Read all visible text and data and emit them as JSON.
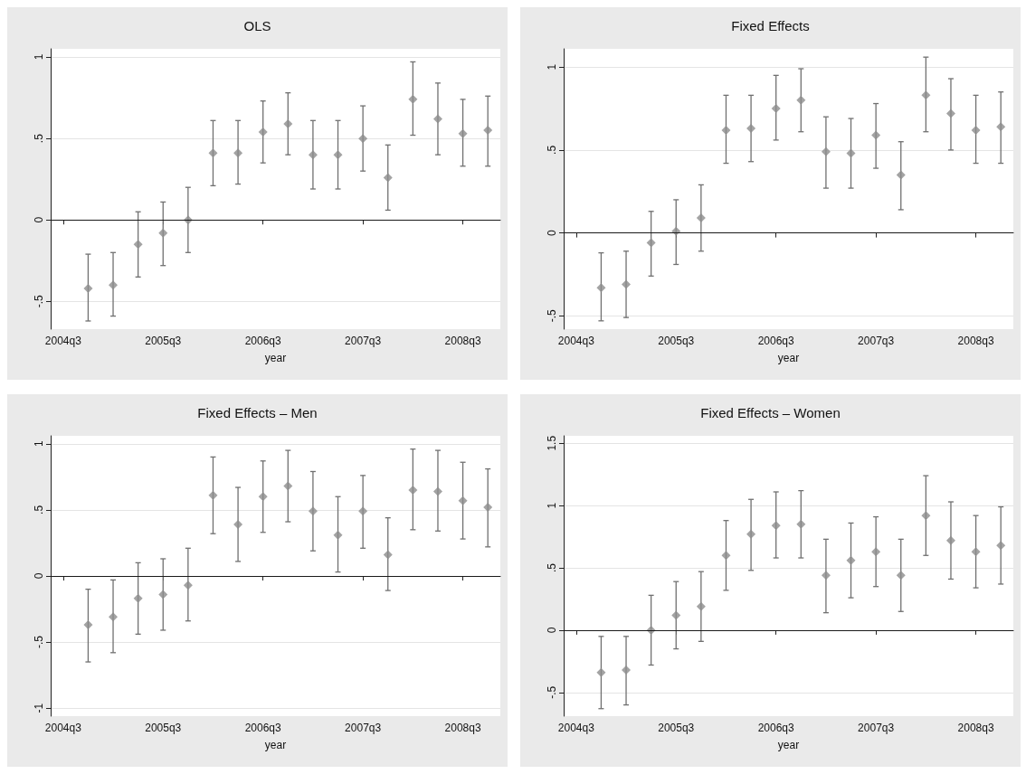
{
  "chart_data": [
    {
      "type": "scatter",
      "title": "OLS",
      "xlabel": "year",
      "marker": "diamond",
      "grid": "y",
      "categories": [
        "2004q3",
        null,
        null,
        null,
        "2005q3",
        null,
        null,
        null,
        "2006q3",
        null,
        null,
        null,
        "2007q3",
        null,
        null,
        null,
        "2008q3",
        null
      ],
      "ylim": [
        -0.67,
        1.05
      ],
      "yticks": [
        {
          "value": -0.5,
          "label": "-.5"
        },
        0,
        {
          "value": 0.5,
          "label": ".5"
        },
        1
      ],
      "ref_lines": [
        {
          "axis": "y",
          "value": 0,
          "color": "#1a1a1a"
        }
      ],
      "series": [
        {
          "color": "#8c8c8c",
          "values": [
            null,
            -0.42,
            -0.4,
            -0.15,
            -0.08,
            0.0,
            0.41,
            0.41,
            0.54,
            0.59,
            0.4,
            0.4,
            0.5,
            0.26,
            0.74,
            0.62,
            0.53,
            0.55
          ],
          "errors": [
            null,
            [
              -0.62,
              -0.21
            ],
            [
              -0.59,
              -0.2
            ],
            [
              -0.35,
              0.05
            ],
            [
              -0.28,
              0.11
            ],
            [
              -0.2,
              0.2
            ],
            [
              0.21,
              0.61
            ],
            [
              0.22,
              0.61
            ],
            [
              0.35,
              0.73
            ],
            [
              0.4,
              0.78
            ],
            [
              0.19,
              0.61
            ],
            [
              0.19,
              0.61
            ],
            [
              0.3,
              0.7
            ],
            [
              0.06,
              0.46
            ],
            [
              0.52,
              0.97
            ],
            [
              0.4,
              0.84
            ],
            [
              0.33,
              0.74
            ],
            [
              0.33,
              0.76
            ]
          ]
        }
      ]
    },
    {
      "type": "scatter",
      "title": "Fixed Effects",
      "xlabel": "year",
      "marker": "diamond",
      "grid": "y",
      "categories": [
        "2004q3",
        null,
        null,
        null,
        "2005q3",
        null,
        null,
        null,
        "2006q3",
        null,
        null,
        null,
        "2007q3",
        null,
        null,
        null,
        "2008q3",
        null
      ],
      "ylim": [
        -0.58,
        1.11
      ],
      "yticks": [
        {
          "value": -0.5,
          "label": "-.5"
        },
        0,
        {
          "value": 0.5,
          "label": ".5"
        },
        1
      ],
      "ref_lines": [
        {
          "axis": "y",
          "value": 0,
          "color": "#1a1a1a"
        }
      ],
      "series": [
        {
          "color": "#8c8c8c",
          "values": [
            null,
            -0.33,
            -0.31,
            -0.06,
            0.01,
            0.09,
            0.62,
            0.63,
            0.75,
            0.8,
            0.49,
            0.48,
            0.59,
            0.35,
            0.83,
            0.72,
            0.62,
            0.64
          ],
          "errors": [
            null,
            [
              -0.53,
              -0.12
            ],
            [
              -0.51,
              -0.11
            ],
            [
              -0.26,
              0.13
            ],
            [
              -0.19,
              0.2
            ],
            [
              -0.11,
              0.29
            ],
            [
              0.42,
              0.83
            ],
            [
              0.43,
              0.83
            ],
            [
              0.56,
              0.95
            ],
            [
              0.61,
              0.99
            ],
            [
              0.27,
              0.7
            ],
            [
              0.27,
              0.69
            ],
            [
              0.39,
              0.78
            ],
            [
              0.14,
              0.55
            ],
            [
              0.61,
              1.06
            ],
            [
              0.5,
              0.93
            ],
            [
              0.42,
              0.83
            ],
            [
              0.42,
              0.85
            ]
          ]
        }
      ]
    },
    {
      "type": "scatter",
      "title": "Fixed Effects – Men",
      "xlabel": "year",
      "marker": "diamond",
      "grid": "y",
      "categories": [
        "2004q3",
        null,
        null,
        null,
        "2005q3",
        null,
        null,
        null,
        "2006q3",
        null,
        null,
        null,
        "2007q3",
        null,
        null,
        null,
        "2008q3",
        null
      ],
      "ylim": [
        -1.06,
        1.06
      ],
      "yticks": [
        {
          "value": -1,
          "label": "-1"
        },
        {
          "value": -0.5,
          "label": "-.5"
        },
        0,
        {
          "value": 0.5,
          "label": ".5"
        },
        1
      ],
      "ref_lines": [
        {
          "axis": "y",
          "value": 0,
          "color": "#1a1a1a"
        }
      ],
      "series": [
        {
          "color": "#8c8c8c",
          "values": [
            null,
            -0.37,
            -0.31,
            -0.17,
            -0.14,
            -0.07,
            0.61,
            0.39,
            0.6,
            0.68,
            0.49,
            0.31,
            0.49,
            0.16,
            0.65,
            0.64,
            0.57,
            0.52
          ],
          "errors": [
            null,
            [
              -0.65,
              -0.1
            ],
            [
              -0.58,
              -0.03
            ],
            [
              -0.44,
              0.1
            ],
            [
              -0.41,
              0.13
            ],
            [
              -0.34,
              0.21
            ],
            [
              0.32,
              0.9
            ],
            [
              0.11,
              0.67
            ],
            [
              0.33,
              0.87
            ],
            [
              0.41,
              0.95
            ],
            [
              0.19,
              0.79
            ],
            [
              0.03,
              0.6
            ],
            [
              0.21,
              0.76
            ],
            [
              -0.11,
              0.44
            ],
            [
              0.35,
              0.96
            ],
            [
              0.34,
              0.95
            ],
            [
              0.28,
              0.86
            ],
            [
              0.22,
              0.81
            ]
          ]
        }
      ]
    },
    {
      "type": "scatter",
      "title": "Fixed Effects – Women",
      "xlabel": "year",
      "marker": "diamond",
      "grid": "y",
      "categories": [
        "2004q3",
        null,
        null,
        null,
        "2005q3",
        null,
        null,
        null,
        "2006q3",
        null,
        null,
        null,
        "2007q3",
        null,
        null,
        null,
        "2008q3",
        null
      ],
      "ylim": [
        -0.69,
        1.56
      ],
      "yticks": [
        {
          "value": -0.5,
          "label": "-.5"
        },
        0,
        {
          "value": 0.5,
          "label": ".5"
        },
        1,
        1.5
      ],
      "ref_lines": [
        {
          "axis": "y",
          "value": 0,
          "color": "#1a1a1a"
        }
      ],
      "series": [
        {
          "color": "#8c8c8c",
          "values": [
            null,
            -0.34,
            -0.32,
            0.0,
            0.12,
            0.19,
            0.6,
            0.77,
            0.84,
            0.85,
            0.44,
            0.56,
            0.63,
            0.44,
            0.92,
            0.72,
            0.63,
            0.68
          ],
          "errors": [
            null,
            [
              -0.63,
              -0.05
            ],
            [
              -0.6,
              -0.05
            ],
            [
              -0.28,
              0.28
            ],
            [
              -0.15,
              0.39
            ],
            [
              -0.09,
              0.47
            ],
            [
              0.32,
              0.88
            ],
            [
              0.48,
              1.05
            ],
            [
              0.58,
              1.11
            ],
            [
              0.58,
              1.12
            ],
            [
              0.14,
              0.73
            ],
            [
              0.26,
              0.86
            ],
            [
              0.35,
              0.91
            ],
            [
              0.15,
              0.73
            ],
            [
              0.6,
              1.24
            ],
            [
              0.41,
              1.03
            ],
            [
              0.34,
              0.92
            ],
            [
              0.37,
              0.99
            ]
          ]
        }
      ]
    }
  ]
}
